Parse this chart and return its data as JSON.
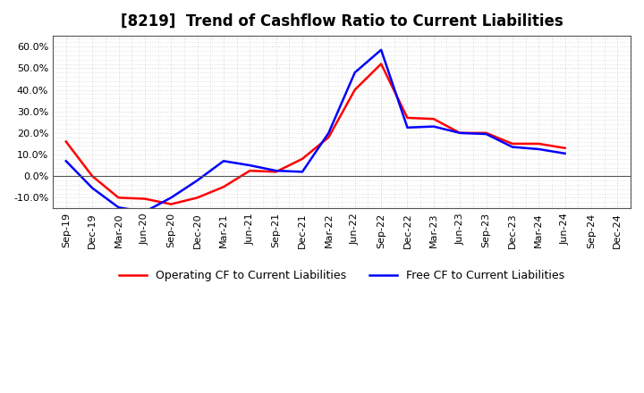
{
  "title": "[8219]  Trend of Cashflow Ratio to Current Liabilities",
  "x_labels": [
    "Sep-19",
    "Dec-19",
    "Mar-20",
    "Jun-20",
    "Sep-20",
    "Dec-20",
    "Mar-21",
    "Jun-21",
    "Sep-21",
    "Dec-21",
    "Mar-22",
    "Jun-22",
    "Sep-22",
    "Dec-22",
    "Mar-23",
    "Jun-23",
    "Sep-23",
    "Dec-23",
    "Mar-24",
    "Jun-24",
    "Sep-24",
    "Dec-24"
  ],
  "operating_cf": [
    0.16,
    0.0,
    -0.1,
    -0.105,
    -0.13,
    -0.1,
    -0.05,
    0.025,
    0.02,
    0.08,
    0.18,
    0.4,
    0.52,
    0.27,
    0.265,
    0.2,
    0.2,
    0.15,
    0.15,
    0.13,
    null,
    null
  ],
  "free_cf": [
    0.07,
    -0.055,
    -0.145,
    -0.165,
    -0.1,
    -0.02,
    0.07,
    0.05,
    0.025,
    0.02,
    0.2,
    0.48,
    0.585,
    0.225,
    0.23,
    0.2,
    0.195,
    0.135,
    0.125,
    0.105,
    null,
    null
  ],
  "operating_color": "#FF0000",
  "free_color": "#0000FF",
  "background_color": "#FFFFFF",
  "plot_bg_color": "#FFFFFF",
  "grid_color": "#AAAAAA",
  "ylim": [
    -0.15,
    0.65
  ],
  "yticks": [
    -0.1,
    0.0,
    0.1,
    0.2,
    0.3,
    0.4,
    0.5,
    0.6
  ],
  "legend_operating": "Operating CF to Current Liabilities",
  "legend_free": "Free CF to Current Liabilities",
  "title_fontsize": 12,
  "axis_fontsize": 8,
  "legend_fontsize": 9
}
